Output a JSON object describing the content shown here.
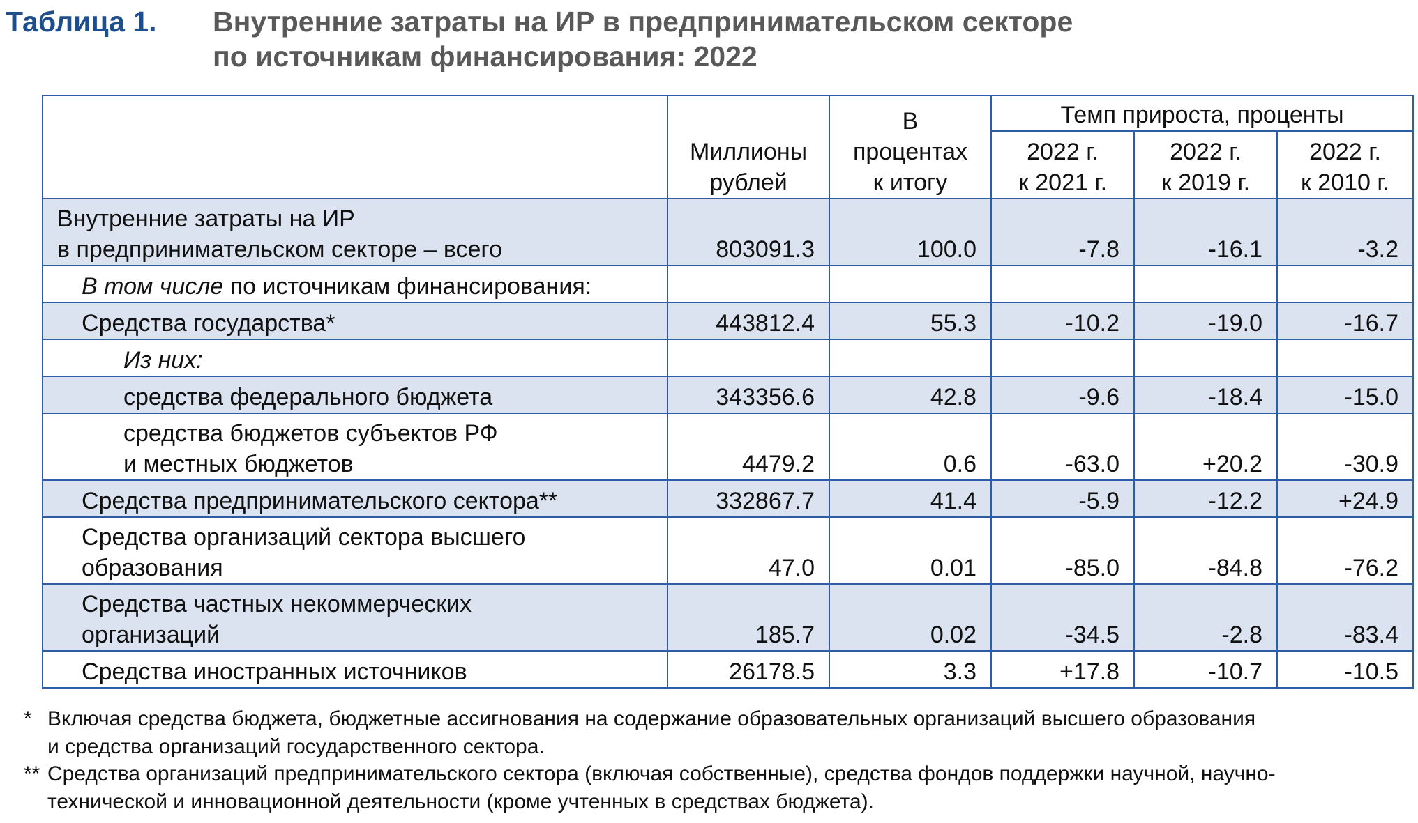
{
  "title": {
    "label": "Таблица 1.",
    "line1": "Внутренние затраты на ИР в предпринимательском секторе",
    "line2": "по источникам финансирования: 2022"
  },
  "header": {
    "col_mln_1": "Миллионы",
    "col_mln_2": "рублей",
    "col_pct_1": "В",
    "col_pct_2": "процентах",
    "col_pct_3": "к итогу",
    "growth_group": "Темп прироста, проценты",
    "g2021_1": "2022 г.",
    "g2021_2": "к 2021 г.",
    "g2019_1": "2022 г.",
    "g2019_2": "к 2019 г.",
    "g2010_1": "2022 г.",
    "g2010_2": "к 2010 г."
  },
  "rows": [
    {
      "label1": "Внутренние затраты на ИР",
      "label2": "в предпринимательском секторе – всего",
      "mln": "803091.3",
      "pct": "100.0",
      "g2021": "-7.8",
      "g2019": "-16.1",
      "g2010": "-3.2"
    },
    {
      "label_italic": "В том числе",
      "label_rest": " по источникам финансирования:"
    },
    {
      "label": "Средства государства*",
      "mln": "443812.4",
      "pct": "55.3",
      "g2021": "-10.2",
      "g2019": "-19.0",
      "g2010": "-16.7"
    },
    {
      "label_italic": "Из них:"
    },
    {
      "label": "средства федерального бюджета",
      "mln": "343356.6",
      "pct": "42.8",
      "g2021": "-9.6",
      "g2019": "-18.4",
      "g2010": "-15.0"
    },
    {
      "label1": "средства бюджетов субъектов РФ",
      "label2": "и местных бюджетов",
      "mln": "4479.2",
      "pct": "0.6",
      "g2021": "-63.0",
      "g2019": "+20.2",
      "g2010": "-30.9"
    },
    {
      "label": "Средства предпринимательского сектора**",
      "mln": "332867.7",
      "pct": "41.4",
      "g2021": "-5.9",
      "g2019": "-12.2",
      "g2010": "+24.9"
    },
    {
      "label1": "Средства организаций сектора высшего",
      "label2": "образования",
      "mln": "47.0",
      "pct": "0.01",
      "g2021": "-85.0",
      "g2019": "-84.8",
      "g2010": "-76.2"
    },
    {
      "label1": "Средства частных некоммерческих",
      "label2": "организаций",
      "mln": "185.7",
      "pct": "0.02",
      "g2021": "-34.5",
      "g2019": "-2.8",
      "g2010": "-83.4"
    },
    {
      "label": "Средства иностранных источников",
      "mln": "26178.5",
      "pct": "3.3",
      "g2021": "+17.8",
      "g2019": "-10.7",
      "g2010": "-10.5"
    }
  ],
  "footnotes": {
    "fn1_mark": "*",
    "fn1_line1": "Включая средства бюджета, бюджетные ассигнования на содержание образовательных организаций высшего образования",
    "fn1_line2": "и средства организаций государственного сектора.",
    "fn2_mark": "**",
    "fn2_line1": "Средства организаций предпринимательского сектора (включая собственные), средства фондов поддержки научной, научно-",
    "fn2_line2": "технической и инновационной деятельности (кроме учтенных в средствах бюджета)."
  },
  "colors": {
    "title_label": "#1f4e8c",
    "title_text": "#595959",
    "border": "#2e5da8",
    "shade": "#dbe3f1"
  }
}
